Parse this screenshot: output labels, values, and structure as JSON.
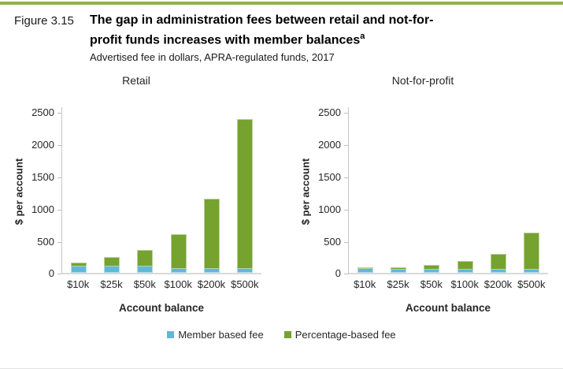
{
  "figure": {
    "label": "Figure 3.15",
    "title": "The gap in administration fees between retail and not-for-profit funds increases with member balances",
    "title_superscript": "a",
    "subtitle": "Advertised fee in dollars, APRA-regulated funds, 2017",
    "accent_color": "#8FB254"
  },
  "legend": [
    {
      "label": "Member based fee",
      "color": "#5FB8DC"
    },
    {
      "label": "Percentage-based fee",
      "color": "#76A22F"
    }
  ],
  "chart_data": [
    {
      "type": "bar",
      "stacked": true,
      "title": "Retail",
      "categories": [
        "$10k",
        "$25k",
        "$50k",
        "$100k",
        "$200k",
        "$500k"
      ],
      "series": [
        {
          "name": "Member based fee",
          "color": "#5FB8DC",
          "values": [
            100,
            105,
            100,
            70,
            60,
            60
          ]
        },
        {
          "name": "Percentage-based fee",
          "color": "#76A22F",
          "values": [
            60,
            140,
            265,
            540,
            1100,
            2330
          ]
        }
      ],
      "totals": [
        160,
        245,
        365,
        610,
        1160,
        2390
      ],
      "xlabel": "Account balance",
      "ylabel": "$ per account",
      "ylim": [
        0,
        2500
      ],
      "yticks": [
        0,
        500,
        1000,
        1500,
        2000,
        2500
      ],
      "grid": false,
      "legend_position": "bottom"
    },
    {
      "type": "bar",
      "stacked": true,
      "title": "Not-for-profit",
      "categories": [
        "$10k",
        "$25k",
        "$50k",
        "$100k",
        "$200k",
        "$500k"
      ],
      "series": [
        {
          "name": "Member based fee",
          "color": "#5FB8DC",
          "values": [
            60,
            55,
            55,
            55,
            55,
            55
          ]
        },
        {
          "name": "Percentage-based fee",
          "color": "#76A22F",
          "values": [
            20,
            35,
            75,
            130,
            245,
            570
          ]
        }
      ],
      "totals": [
        80,
        90,
        130,
        185,
        300,
        625
      ],
      "xlabel": "Account balance",
      "ylabel": "$ per account",
      "ylim": [
        0,
        2500
      ],
      "yticks": [
        0,
        500,
        1000,
        1500,
        2000,
        2500
      ],
      "grid": false,
      "legend_position": "bottom"
    }
  ]
}
